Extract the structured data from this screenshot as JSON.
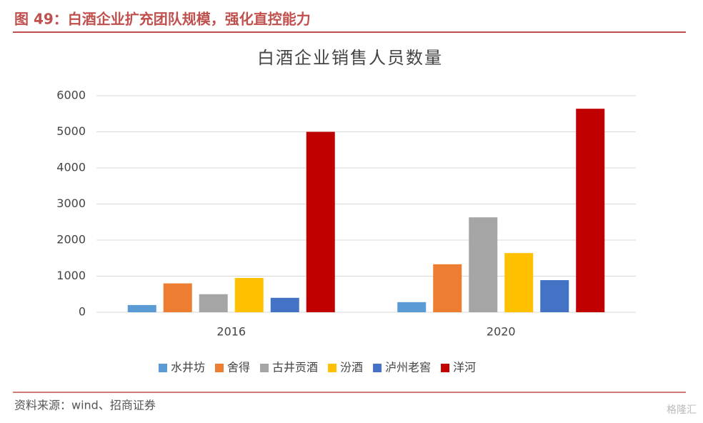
{
  "header": {
    "title": "图 49：白酒企业扩充团队规模，强化直控能力"
  },
  "chart_data": {
    "type": "bar",
    "title": "白酒企业销售人员数量",
    "categories": [
      "2016",
      "2020"
    ],
    "series": [
      {
        "name": "水井坊",
        "color": "#5B9BD5",
        "values": [
          200,
          280
        ]
      },
      {
        "name": "舍得",
        "color": "#ED7D31",
        "values": [
          800,
          1330
        ]
      },
      {
        "name": "古井贡酒",
        "color": "#A5A5A5",
        "values": [
          500,
          2630
        ]
      },
      {
        "name": "汾酒",
        "color": "#FFC000",
        "values": [
          950,
          1640
        ]
      },
      {
        "name": "泸州老窖",
        "color": "#4472C4",
        "values": [
          400,
          890
        ]
      },
      {
        "name": "洋河",
        "color": "#C00000",
        "values": [
          5000,
          5640
        ]
      }
    ],
    "ylim": [
      0,
      6000
    ],
    "yticks": [
      0,
      1000,
      2000,
      3000,
      4000,
      5000,
      6000
    ],
    "grid": true,
    "legend": "bottom"
  },
  "footer": {
    "source": "资料来源：wind、招商证券",
    "watermark": "格隆汇"
  }
}
